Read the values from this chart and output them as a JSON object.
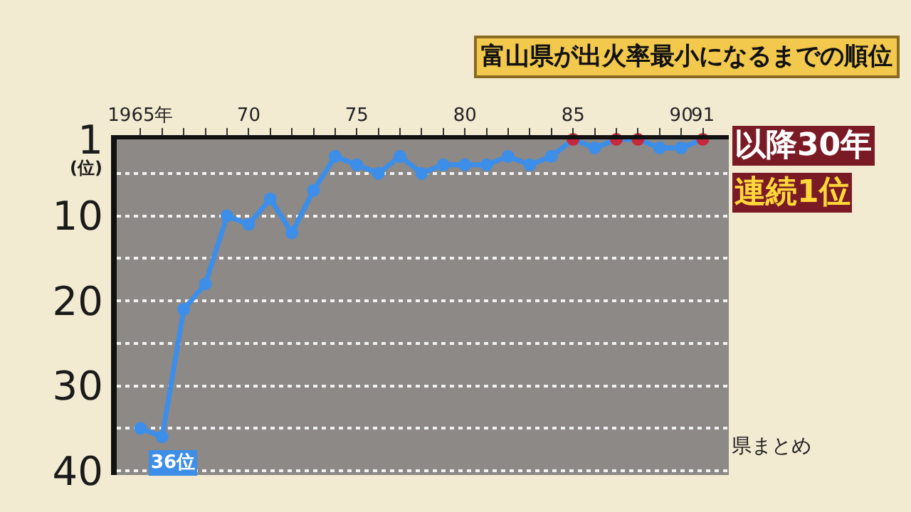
{
  "chart_data": {
    "type": "line",
    "title": "富山県が出火率最小になるまでの順位",
    "ylabel": "(位)",
    "x": [
      1965,
      1966,
      1967,
      1968,
      1969,
      1970,
      1971,
      1972,
      1973,
      1974,
      1975,
      1976,
      1977,
      1978,
      1979,
      1980,
      1981,
      1982,
      1983,
      1984,
      1985,
      1986,
      1987,
      1988,
      1989,
      1990,
      1991
    ],
    "series": [
      {
        "color": "#3d8ee8",
        "colors": [
          "#3d8ee8",
          "#3d8ee8",
          "#3d8ee8",
          "#3d8ee8",
          "#3d8ee8",
          "#3d8ee8",
          "#3d8ee8",
          "#3d8ee8",
          "#3d8ee8",
          "#3d8ee8",
          "#3d8ee8",
          "#3d8ee8",
          "#3d8ee8",
          "#3d8ee8",
          "#3d8ee8",
          "#3d8ee8",
          "#3d8ee8",
          "#3d8ee8",
          "#3d8ee8",
          "#3d8ee8",
          "#c8283c",
          "#3d8ee8",
          "#c8283c",
          "#c8283c",
          "#3d8ee8",
          "#3d8ee8",
          "#c8283c"
        ],
        "values": [
          35,
          36,
          21,
          18,
          10,
          11,
          8,
          12,
          7,
          3,
          4,
          5,
          3,
          5,
          4,
          4,
          4,
          3,
          4,
          3,
          1,
          2,
          1,
          1,
          2,
          2,
          1
        ]
      }
    ],
    "xlim": [
      1963.9,
      1992.2
    ],
    "xticks": [
      {
        "value": 1965,
        "label": "1965年"
      },
      {
        "value": 1966,
        "label": null
      },
      {
        "value": 1967,
        "label": null
      },
      {
        "value": 1968,
        "label": null
      },
      {
        "value": 1969,
        "label": null
      },
      {
        "value": 1970,
        "label": "70"
      },
      {
        "value": 1971,
        "label": null
      },
      {
        "value": 1972,
        "label": null
      },
      {
        "value": 1973,
        "label": null
      },
      {
        "value": 1974,
        "label": null
      },
      {
        "value": 1975,
        "label": "75"
      },
      {
        "value": 1976,
        "label": null
      },
      {
        "value": 1977,
        "label": null
      },
      {
        "value": 1978,
        "label": null
      },
      {
        "value": 1979,
        "label": null
      },
      {
        "value": 1980,
        "label": "80"
      },
      {
        "value": 1981,
        "label": null
      },
      {
        "value": 1982,
        "label": null
      },
      {
        "value": 1983,
        "label": null
      },
      {
        "value": 1984,
        "label": null
      },
      {
        "value": 1985,
        "label": "85"
      },
      {
        "value": 1986,
        "label": null
      },
      {
        "value": 1987,
        "label": null
      },
      {
        "value": 1988,
        "label": null
      },
      {
        "value": 1989,
        "label": null
      },
      {
        "value": 1990,
        "label": "90"
      },
      {
        "value": 1991,
        "label": "91"
      }
    ],
    "ylim": [
      40.5,
      1
    ],
    "yticks": [
      1,
      {
        "value": 5,
        "label": null
      },
      10,
      {
        "value": 15,
        "label": null
      },
      20,
      {
        "value": 25,
        "label": null
      },
      30,
      {
        "value": 35,
        "label": null
      },
      40
    ],
    "grid": "y",
    "marker": "circle",
    "line_style": "solid",
    "annotations": [
      {
        "text": "36位",
        "x": 1966,
        "y": 36
      },
      "以降30年",
      "連続1位",
      "県まとめ"
    ]
  }
}
